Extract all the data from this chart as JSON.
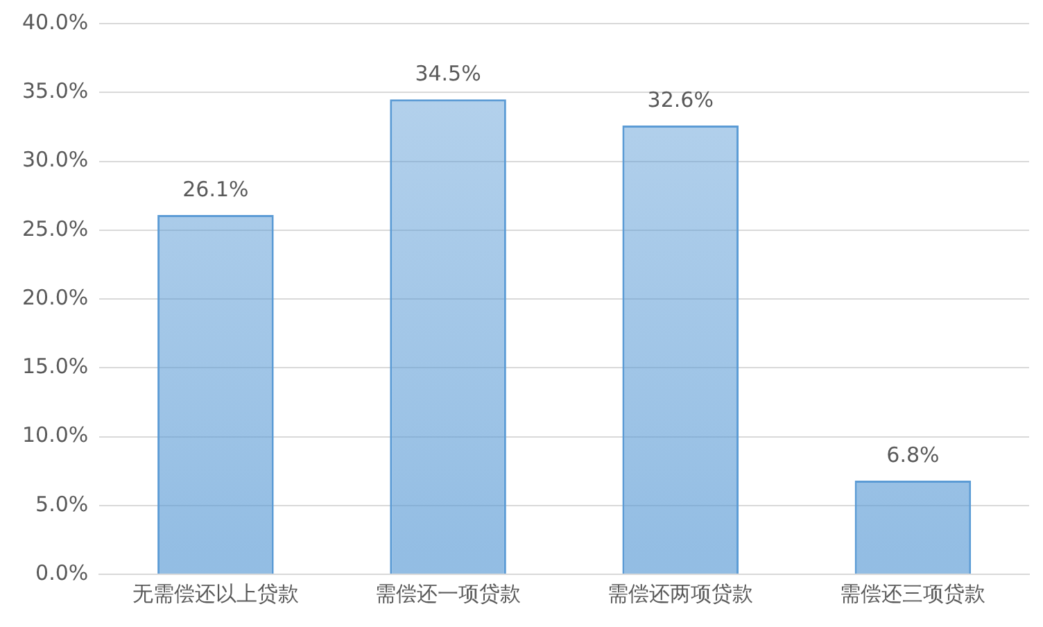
{
  "chart_data": {
    "type": "bar",
    "categories": [
      "无需偿还以上贷款",
      "需偿还一项贷款",
      "需偿还两项贷款",
      "需偿还三项贷款"
    ],
    "values": [
      26.1,
      34.5,
      32.6,
      6.8
    ],
    "color": "#5b9bd5",
    "value_labels": [
      "26.1%",
      "34.5%",
      "32.6%",
      "6.8%"
    ],
    "ylim": [
      0,
      40
    ],
    "yticks": [
      {
        "value": 0,
        "label": "0.0%"
      },
      {
        "value": 5,
        "label": "5.0%"
      },
      {
        "value": 10,
        "label": "10.0%"
      },
      {
        "value": 15,
        "label": "15.0%"
      },
      {
        "value": 20,
        "label": "20.0%"
      },
      {
        "value": 25,
        "label": "25.0%"
      },
      {
        "value": 30,
        "label": "30.0%"
      },
      {
        "value": 35,
        "label": "35.0%"
      },
      {
        "value": 40,
        "label": "40.0%"
      }
    ],
    "grid": "y",
    "legend": false
  }
}
